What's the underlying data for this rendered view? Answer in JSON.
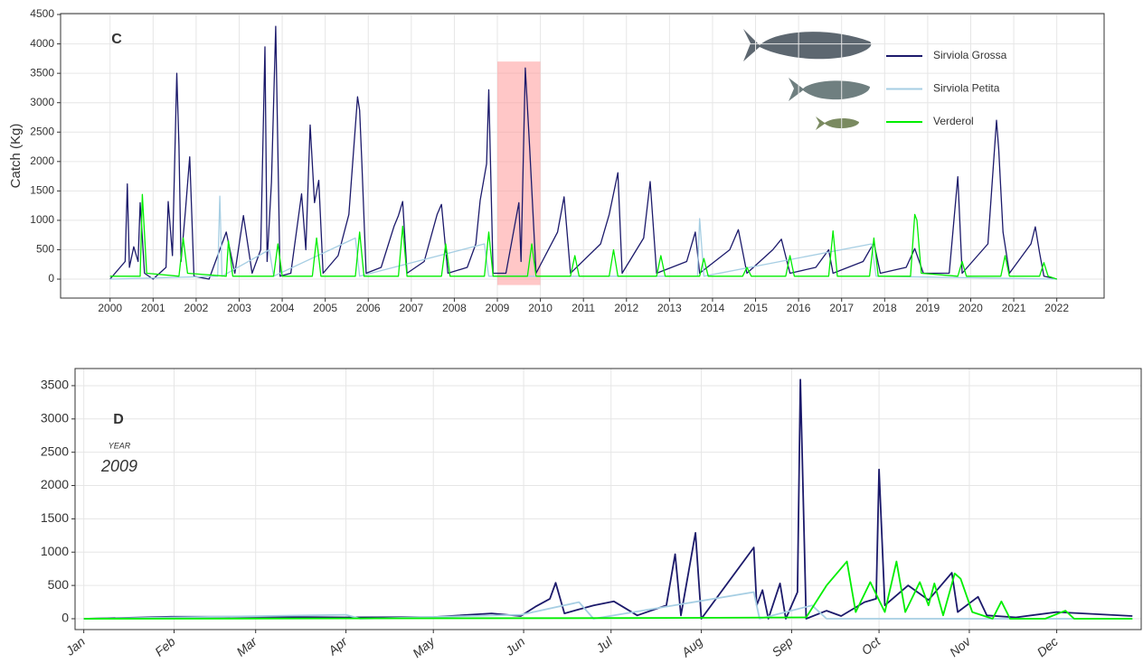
{
  "chart_data": [
    {
      "type": "line",
      "panel_label": "C",
      "y_label": "Catch (Kg)",
      "xlim": [
        1998.85,
        2023.1
      ],
      "ylim": [
        -322,
        4516
      ],
      "xticks": [
        2000,
        2001,
        2002,
        2003,
        2004,
        2005,
        2006,
        2007,
        2008,
        2009,
        2010,
        2011,
        2012,
        2013,
        2014,
        2015,
        2016,
        2017,
        2018,
        2019,
        2020,
        2021,
        2022
      ],
      "yticks": [
        0,
        500,
        1000,
        1500,
        2000,
        2500,
        3000,
        3500,
        4000,
        4500
      ],
      "grid": true,
      "legend": "top-right",
      "highlight": {
        "x": [
          2009,
          2010
        ],
        "y": [
          -100,
          3700
        ],
        "color": "#ff9999"
      },
      "series": [
        {
          "name": "Sirviola Grossa",
          "color": "#1c1a6b",
          "x": [
            2000,
            2000.35,
            2000.4,
            2000.45,
            2000.55,
            2000.65,
            2000.7,
            2000.8,
            2001,
            2001.3,
            2001.35,
            2001.45,
            2001.55,
            2001.6,
            2001.65,
            2001.75,
            2001.85,
            2001.95,
            2002.3,
            2002.5,
            2002.7,
            2002.9,
            2003.1,
            2003.3,
            2003.5,
            2003.6,
            2003.65,
            2003.75,
            2003.85,
            2003.95,
            2004.2,
            2004.45,
            2004.55,
            2004.65,
            2004.75,
            2004.85,
            2004.95,
            2005.3,
            2005.55,
            2005.75,
            2005.8,
            2005.85,
            2005.95,
            2006.3,
            2006.6,
            2006.7,
            2006.8,
            2006.9,
            2007.3,
            2007.6,
            2007.7,
            2007.85,
            2008.3,
            2008.5,
            2008.6,
            2008.75,
            2008.8,
            2008.9,
            2009.2,
            2009.5,
            2009.55,
            2009.65,
            2009.75,
            2009.9,
            2010.4,
            2010.55,
            2010.7,
            2011.4,
            2011.6,
            2011.8,
            2011.9,
            2012.4,
            2012.55,
            2012.7,
            2013.4,
            2013.6,
            2013.7,
            2014.4,
            2014.6,
            2014.8,
            2015.4,
            2015.6,
            2015.8,
            2016.4,
            2016.7,
            2016.8,
            2017.5,
            2017.75,
            2017.9,
            2018.5,
            2018.7,
            2018.9,
            2019.5,
            2019.7,
            2019.8,
            2020.4,
            2020.6,
            2020.65,
            2020.75,
            2020.9,
            2021.4,
            2021.5,
            2021.6,
            2021.7,
            2022
          ],
          "values": [
            0,
            300,
            1620,
            200,
            550,
            300,
            1300,
            100,
            0,
            200,
            1320,
            400,
            3500,
            2270,
            300,
            1150,
            2080,
            50,
            0,
            400,
            800,
            100,
            1080,
            100,
            500,
            3950,
            300,
            1650,
            4300,
            50,
            100,
            1450,
            500,
            2620,
            1300,
            1680,
            100,
            400,
            1100,
            3100,
            2870,
            2000,
            100,
            200,
            900,
            1080,
            1320,
            100,
            300,
            1100,
            1270,
            100,
            200,
            600,
            1340,
            1960,
            3220,
            100,
            100,
            1300,
            300,
            3590,
            2240,
            100,
            800,
            1400,
            100,
            600,
            1100,
            1810,
            100,
            700,
            1660,
            100,
            300,
            800,
            100,
            500,
            840,
            100,
            500,
            680,
            100,
            200,
            500,
            100,
            300,
            620,
            100,
            200,
            520,
            100,
            100,
            1740,
            100,
            600,
            2700,
            2220,
            800,
            100,
            600,
            890,
            450,
            50,
            0
          ]
        },
        {
          "name": "Sirviola Petita",
          "color": "#a6cee3",
          "x": [
            2000,
            2002.5,
            2002.55,
            2002.6,
            2003.7,
            2003.8,
            2005.7,
            2005.8,
            2008.7,
            2008.8,
            2013.65,
            2013.7,
            2013.8,
            2017.7,
            2017.8,
            2022
          ],
          "values": [
            0,
            50,
            1410,
            50,
            500,
            50,
            700,
            50,
            600,
            50,
            50,
            1030,
            50,
            600,
            50,
            0
          ]
        },
        {
          "name": "Verderol",
          "color": "#00ee00",
          "x": [
            2000,
            2000.7,
            2000.75,
            2000.85,
            2001.6,
            2001.7,
            2001.8,
            2002.7,
            2002.75,
            2002.85,
            2003.8,
            2003.9,
            2004,
            2004.7,
            2004.8,
            2004.9,
            2005.7,
            2005.8,
            2005.9,
            2006.7,
            2006.8,
            2006.9,
            2007.7,
            2007.8,
            2007.9,
            2008.7,
            2008.8,
            2008.9,
            2009.7,
            2009.8,
            2009.9,
            2010.7,
            2010.8,
            2010.9,
            2011.6,
            2011.7,
            2011.8,
            2012.7,
            2012.8,
            2012.9,
            2013.7,
            2013.8,
            2013.9,
            2014.7,
            2014.8,
            2014.9,
            2015.7,
            2015.8,
            2015.9,
            2016.7,
            2016.8,
            2016.9,
            2017.65,
            2017.75,
            2017.85,
            2018.6,
            2018.7,
            2018.75,
            2018.85,
            2019.7,
            2019.8,
            2019.9,
            2020.7,
            2020.8,
            2020.9,
            2021.6,
            2021.7,
            2021.8,
            2022
          ],
          "values": [
            50,
            50,
            1440,
            100,
            50,
            700,
            100,
            50,
            650,
            50,
            50,
            600,
            50,
            50,
            700,
            50,
            50,
            800,
            50,
            50,
            900,
            50,
            50,
            600,
            50,
            50,
            800,
            50,
            50,
            600,
            50,
            50,
            400,
            50,
            50,
            500,
            50,
            50,
            400,
            50,
            50,
            350,
            50,
            50,
            200,
            50,
            50,
            400,
            50,
            50,
            820,
            50,
            50,
            700,
            50,
            50,
            1100,
            1000,
            100,
            50,
            300,
            50,
            50,
            400,
            50,
            50,
            280,
            50,
            0
          ]
        }
      ]
    },
    {
      "type": "line",
      "panel_label": "D",
      "year_label": "YEAR",
      "year": "2009",
      "xlim": [
        -3,
        363
      ],
      "ylim": [
        -163,
        3757
      ],
      "xticks": [
        {
          "value": 0,
          "label": "Jan"
        },
        {
          "value": 31,
          "label": "Feb"
        },
        {
          "value": 59,
          "label": "Mar"
        },
        {
          "value": 90,
          "label": "Apr"
        },
        {
          "value": 120,
          "label": "May"
        },
        {
          "value": 151,
          "label": "Jun"
        },
        {
          "value": 181,
          "label": "Jul"
        },
        {
          "value": 212,
          "label": "Aug"
        },
        {
          "value": 243,
          "label": "Sep"
        },
        {
          "value": 273,
          "label": "Oct"
        },
        {
          "value": 304,
          "label": "Nov"
        },
        {
          "value": 334,
          "label": "Dec"
        }
      ],
      "yticks": [
        0,
        500,
        1000,
        1500,
        2000,
        2500,
        3000,
        3500
      ],
      "grid": true,
      "series": [
        {
          "color": "#1c1a6b",
          "x": [
            0,
            30,
            60,
            90,
            120,
            140,
            150,
            155,
            160,
            162,
            165,
            175,
            182,
            190,
            200,
            203,
            205,
            210,
            212,
            230,
            231,
            233,
            235,
            239,
            241,
            245,
            246,
            248,
            255,
            260,
            268,
            272,
            273,
            275,
            283,
            290,
            298,
            300,
            307,
            310,
            320,
            334,
            360
          ],
          "values": [
            0,
            30,
            30,
            20,
            25,
            80,
            40,
            180,
            300,
            540,
            80,
            200,
            260,
            50,
            200,
            970,
            50,
            1290,
            0,
            1070,
            200,
            430,
            0,
            530,
            0,
            400,
            3590,
            0,
            120,
            40,
            250,
            300,
            2240,
            200,
            500,
            280,
            690,
            100,
            330,
            50,
            20,
            100,
            40
          ]
        },
        {
          "color": "#a6cee3",
          "x": [
            0,
            90,
            95,
            150,
            170,
            175,
            230,
            232,
            250,
            255,
            360
          ],
          "values": [
            0,
            60,
            0,
            60,
            250,
            0,
            400,
            0,
            200,
            0,
            0
          ]
        },
        {
          "color": "#00ee00",
          "x": [
            0,
            190,
            248,
            255,
            262,
            265,
            270,
            275,
            279,
            282,
            287,
            290,
            292,
            295,
            299,
            301,
            305,
            312,
            315,
            318,
            330,
            337,
            340,
            360
          ],
          "values": [
            0,
            10,
            20,
            500,
            860,
            100,
            550,
            100,
            860,
            100,
            550,
            200,
            530,
            50,
            680,
            600,
            100,
            0,
            260,
            0,
            0,
            120,
            0,
            0
          ]
        }
      ]
    }
  ]
}
